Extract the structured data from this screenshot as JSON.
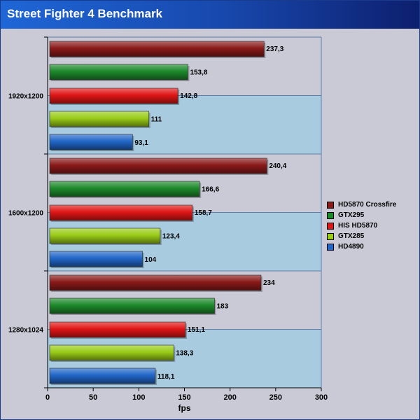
{
  "chart_data": {
    "type": "bar",
    "orientation": "horizontal",
    "title": "Street Fighter 4 Benchmark",
    "xlabel": "fps",
    "ylabel": "",
    "xlim": [
      0,
      300
    ],
    "xticks": [
      0,
      50,
      100,
      150,
      200,
      250,
      300
    ],
    "grid": false,
    "legend_position": "right",
    "categories": [
      "1920x1200",
      "1600x1200",
      "1280x1024"
    ],
    "value_labels": [
      [
        "237,3",
        "153,8",
        "142,8",
        "111",
        "93,1"
      ],
      [
        "240,4",
        "166,6",
        "158,7",
        "123,4",
        "104"
      ],
      [
        "234",
        "183",
        "151,1",
        "138,3",
        "118,1"
      ]
    ],
    "series": [
      {
        "name": "HD5870 Crossfire",
        "color": "#8b1a1a",
        "values": [
          237.3,
          240.4,
          234
        ]
      },
      {
        "name": "GTX295",
        "color": "#1d8a2b",
        "values": [
          153.8,
          166.6,
          183
        ]
      },
      {
        "name": "HIS HD5870",
        "color": "#e01616",
        "values": [
          142.8,
          158.7,
          151.1
        ]
      },
      {
        "name": "GTX285",
        "color": "#9acc18",
        "values": [
          111,
          123.4,
          138.3
        ]
      },
      {
        "name": "HD4890",
        "color": "#2166c8",
        "values": [
          93.1,
          104,
          118.1
        ]
      }
    ]
  }
}
